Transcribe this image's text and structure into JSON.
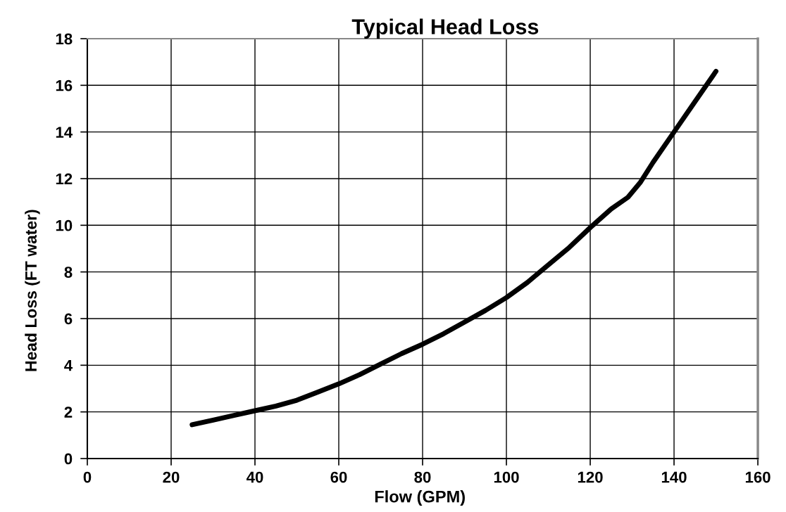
{
  "chart_data": {
    "type": "line",
    "title": "Typical Head Loss",
    "xlabel": "Flow (GPM)",
    "ylabel": "Head Loss (FT water)",
    "x": [
      25,
      30,
      35,
      40,
      45,
      50,
      55,
      60,
      65,
      70,
      75,
      80,
      85,
      90,
      95,
      100,
      105,
      110,
      115,
      120,
      125,
      129,
      132,
      135,
      140,
      145,
      150
    ],
    "series": [
      {
        "color": "#000000",
        "values": [
          1.45,
          1.65,
          1.85,
          2.05,
          2.25,
          2.5,
          2.85,
          3.2,
          3.6,
          4.05,
          4.5,
          4.9,
          5.35,
          5.85,
          6.35,
          6.9,
          7.55,
          8.3,
          9.05,
          9.9,
          10.7,
          11.2,
          11.85,
          12.7,
          14.0,
          15.3,
          16.6
        ]
      }
    ],
    "xlim": [
      0,
      160
    ],
    "ylim": [
      0,
      18
    ],
    "xticks": [
      0,
      20,
      40,
      60,
      80,
      100,
      120,
      140,
      160
    ],
    "yticks": [
      0,
      2,
      4,
      6,
      8,
      10,
      12,
      14,
      16,
      18
    ],
    "grid": true,
    "line_style": "solid"
  }
}
